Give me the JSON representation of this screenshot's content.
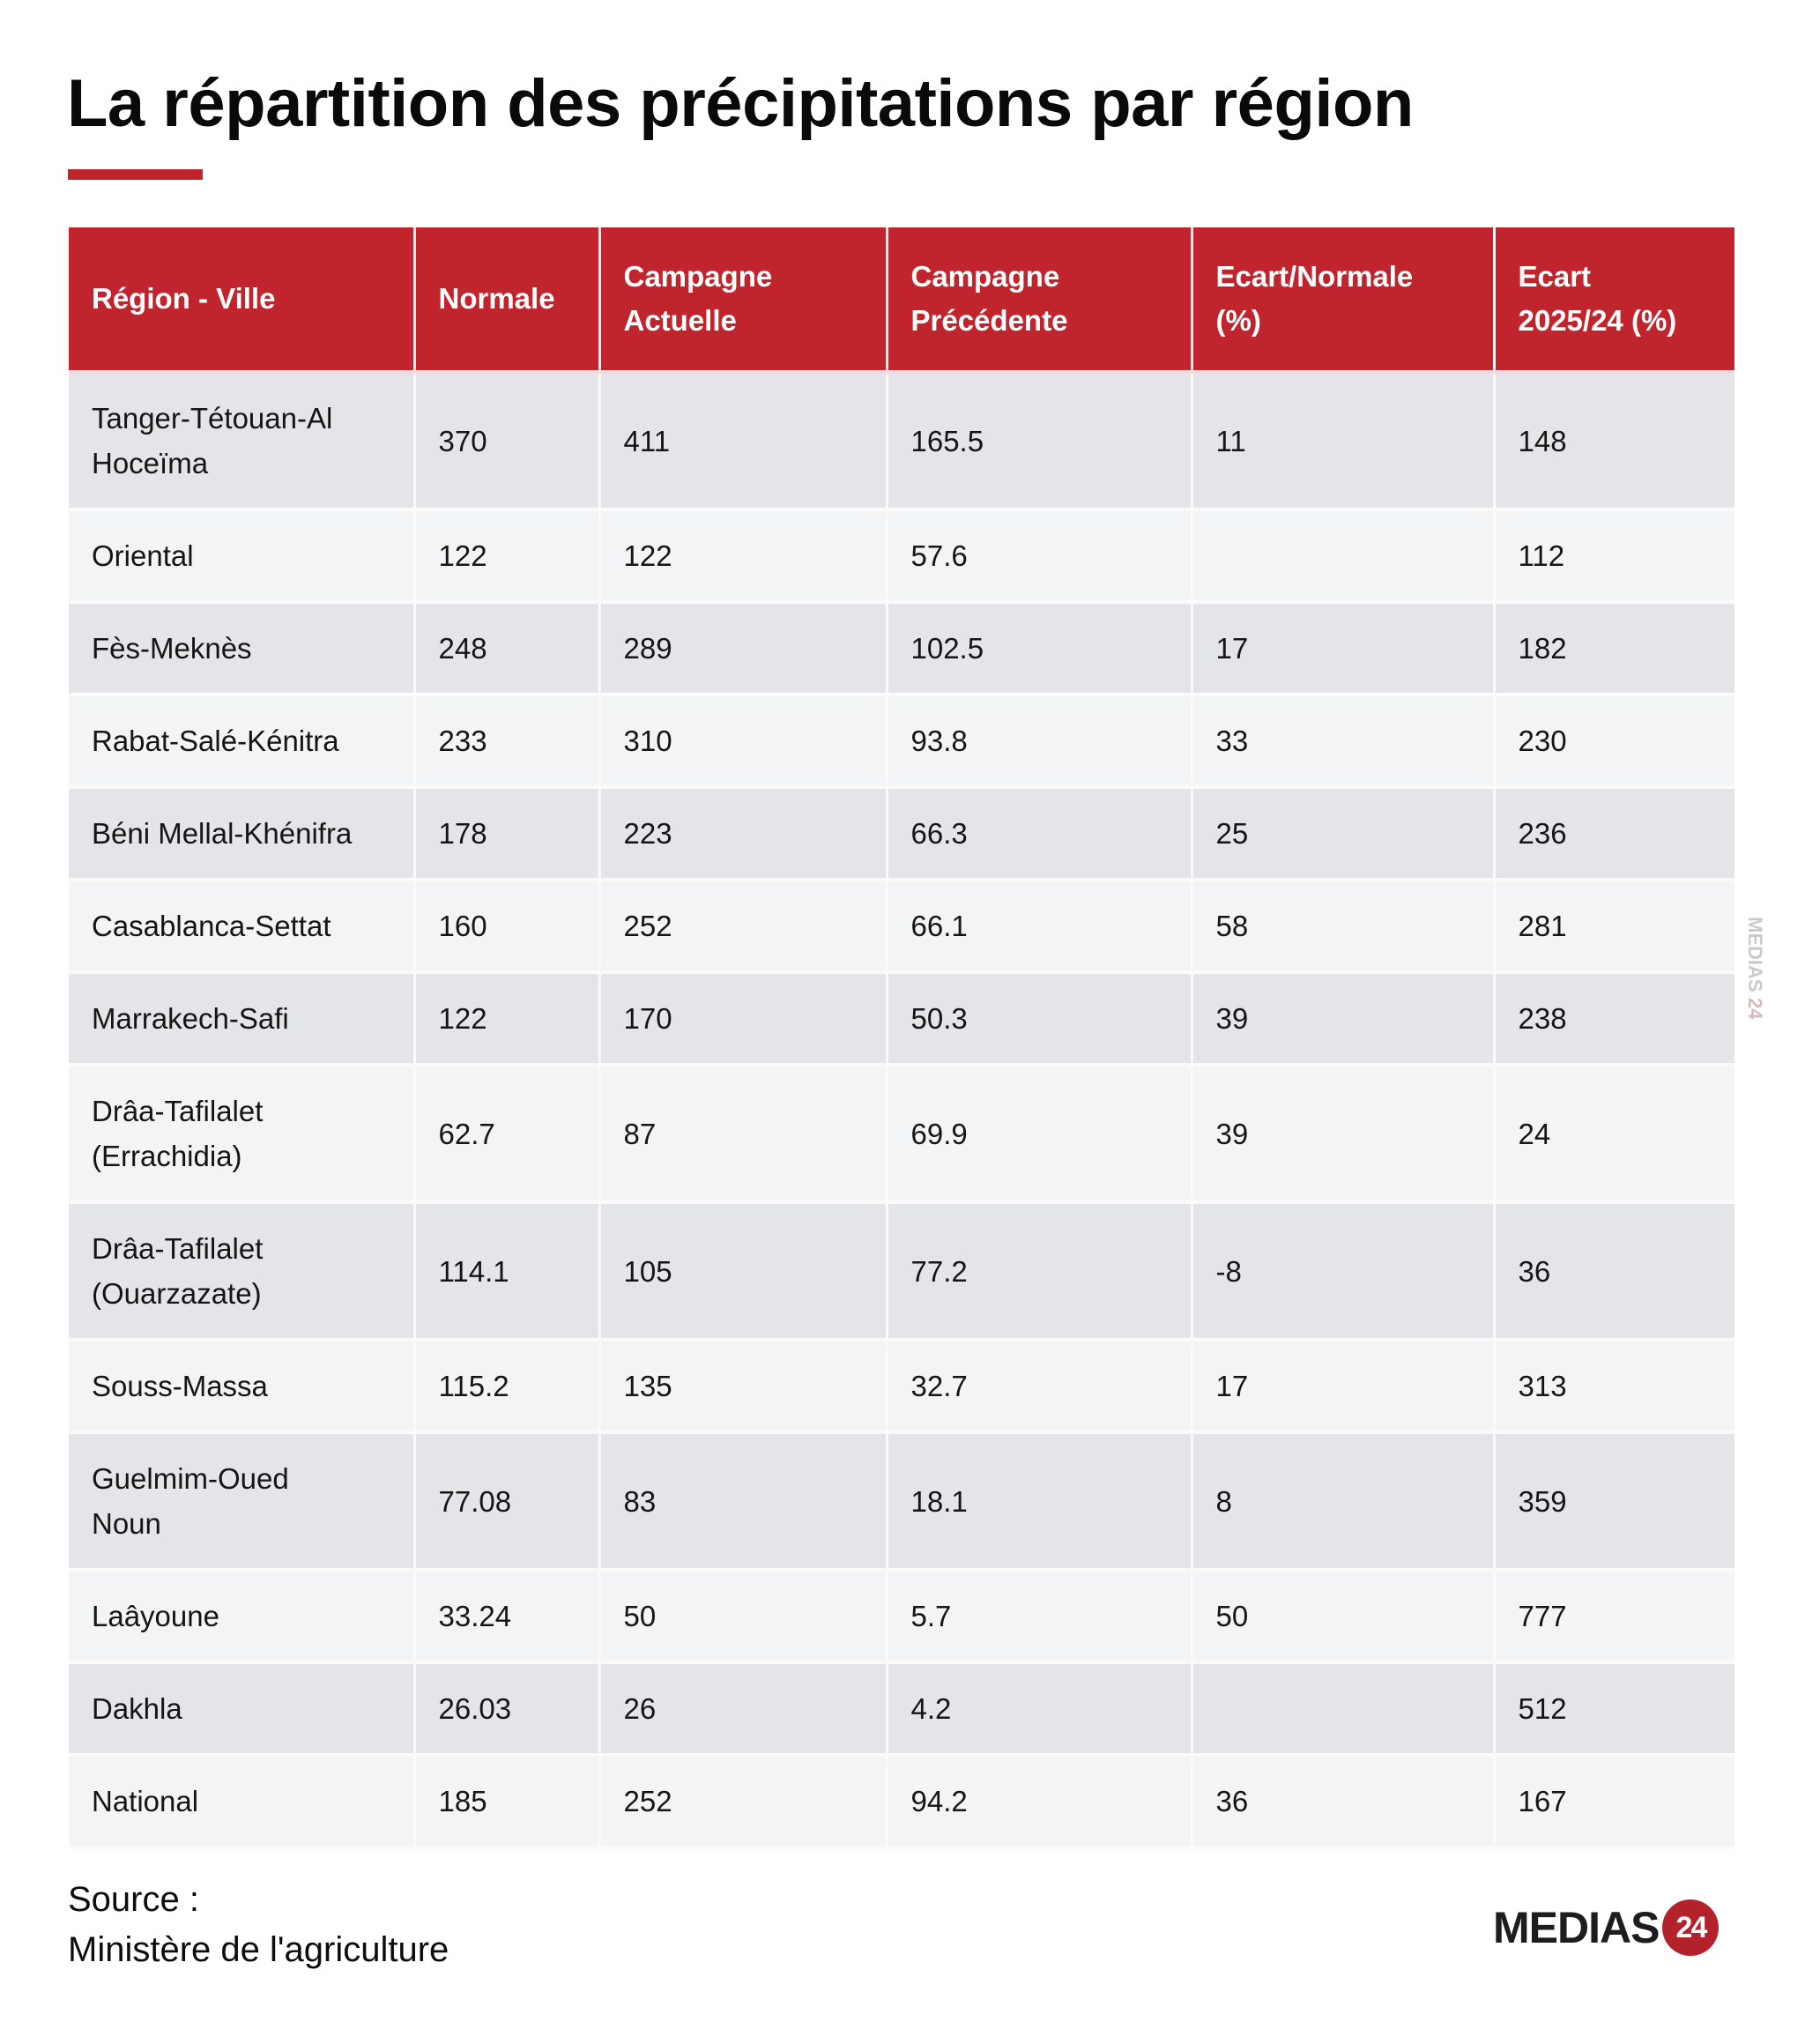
{
  "title": "La répartition des précipitations par région",
  "accent_color": "#C0252D",
  "table": {
    "headers": [
      [
        "Région - Ville"
      ],
      [
        "Normale"
      ],
      [
        "Campagne",
        "Actuelle"
      ],
      [
        "Campagne",
        "Précédente"
      ],
      [
        "Ecart/Normale",
        "(%)"
      ],
      [
        "Ecart",
        "2025/24 (%)"
      ]
    ],
    "rows": [
      {
        "region": "Tanger-Tétouan-Al\nHoceïma",
        "normale": "370",
        "actuelle": "411",
        "precedente": "165.5",
        "ecart_normale": "11",
        "ecart_2025_24": "148"
      },
      {
        "region": "Oriental",
        "normale": "122",
        "actuelle": "122",
        "precedente": "57.6",
        "ecart_normale": "",
        "ecart_2025_24": "112"
      },
      {
        "region": "Fès-Meknès",
        "normale": "248",
        "actuelle": "289",
        "precedente": "102.5",
        "ecart_normale": "17",
        "ecart_2025_24": "182"
      },
      {
        "region": "Rabat-Salé-Kénitra",
        "normale": "233",
        "actuelle": "310",
        "precedente": "93.8",
        "ecart_normale": "33",
        "ecart_2025_24": "230"
      },
      {
        "region": "Béni Mellal-Khénifra",
        "normale": "178",
        "actuelle": "223",
        "precedente": "66.3",
        "ecart_normale": "25",
        "ecart_2025_24": "236"
      },
      {
        "region": "Casablanca-Settat",
        "normale": "160",
        "actuelle": "252",
        "precedente": "66.1",
        "ecart_normale": "58",
        "ecart_2025_24": "281"
      },
      {
        "region": "Marrakech-Safi",
        "normale": "122",
        "actuelle": "170",
        "precedente": "50.3",
        "ecart_normale": "39",
        "ecart_2025_24": "238"
      },
      {
        "region": "Drâa-Tafilalet\n(Errachidia)",
        "normale": "62.7",
        "actuelle": "87",
        "precedente": "69.9",
        "ecart_normale": "39",
        "ecart_2025_24": "24"
      },
      {
        "region": "Drâa-Tafilalet\n(Ouarzazate)",
        "normale": "114.1",
        "actuelle": "105",
        "precedente": "77.2",
        "ecart_normale": "-8",
        "ecart_2025_24": "36"
      },
      {
        "region": "Souss-Massa",
        "normale": "115.2",
        "actuelle": "135",
        "precedente": "32.7",
        "ecart_normale": "17",
        "ecart_2025_24": "313"
      },
      {
        "region": "Guelmim-Oued\nNoun",
        "normale": "77.08",
        "actuelle": "83",
        "precedente": "18.1",
        "ecart_normale": "8",
        "ecart_2025_24": "359"
      },
      {
        "region": "Laâyoune",
        "normale": "33.24",
        "actuelle": "50",
        "precedente": "5.7",
        "ecart_normale": "50",
        "ecart_2025_24": "777"
      },
      {
        "region": "Dakhla",
        "normale": "26.03",
        "actuelle": "26",
        "precedente": "4.2",
        "ecart_normale": "",
        "ecart_2025_24": "512"
      },
      {
        "region": "National",
        "normale": "185",
        "actuelle": "252",
        "precedente": "94.2",
        "ecart_normale": "36",
        "ecart_2025_24": "167"
      }
    ]
  },
  "watermark": {
    "text": "MEDIAS",
    "number": "24"
  },
  "footer": {
    "source_label": "Source :",
    "source_value": "Ministère de l'agriculture",
    "logo_text": "MEDIAS",
    "logo_number": "24"
  }
}
